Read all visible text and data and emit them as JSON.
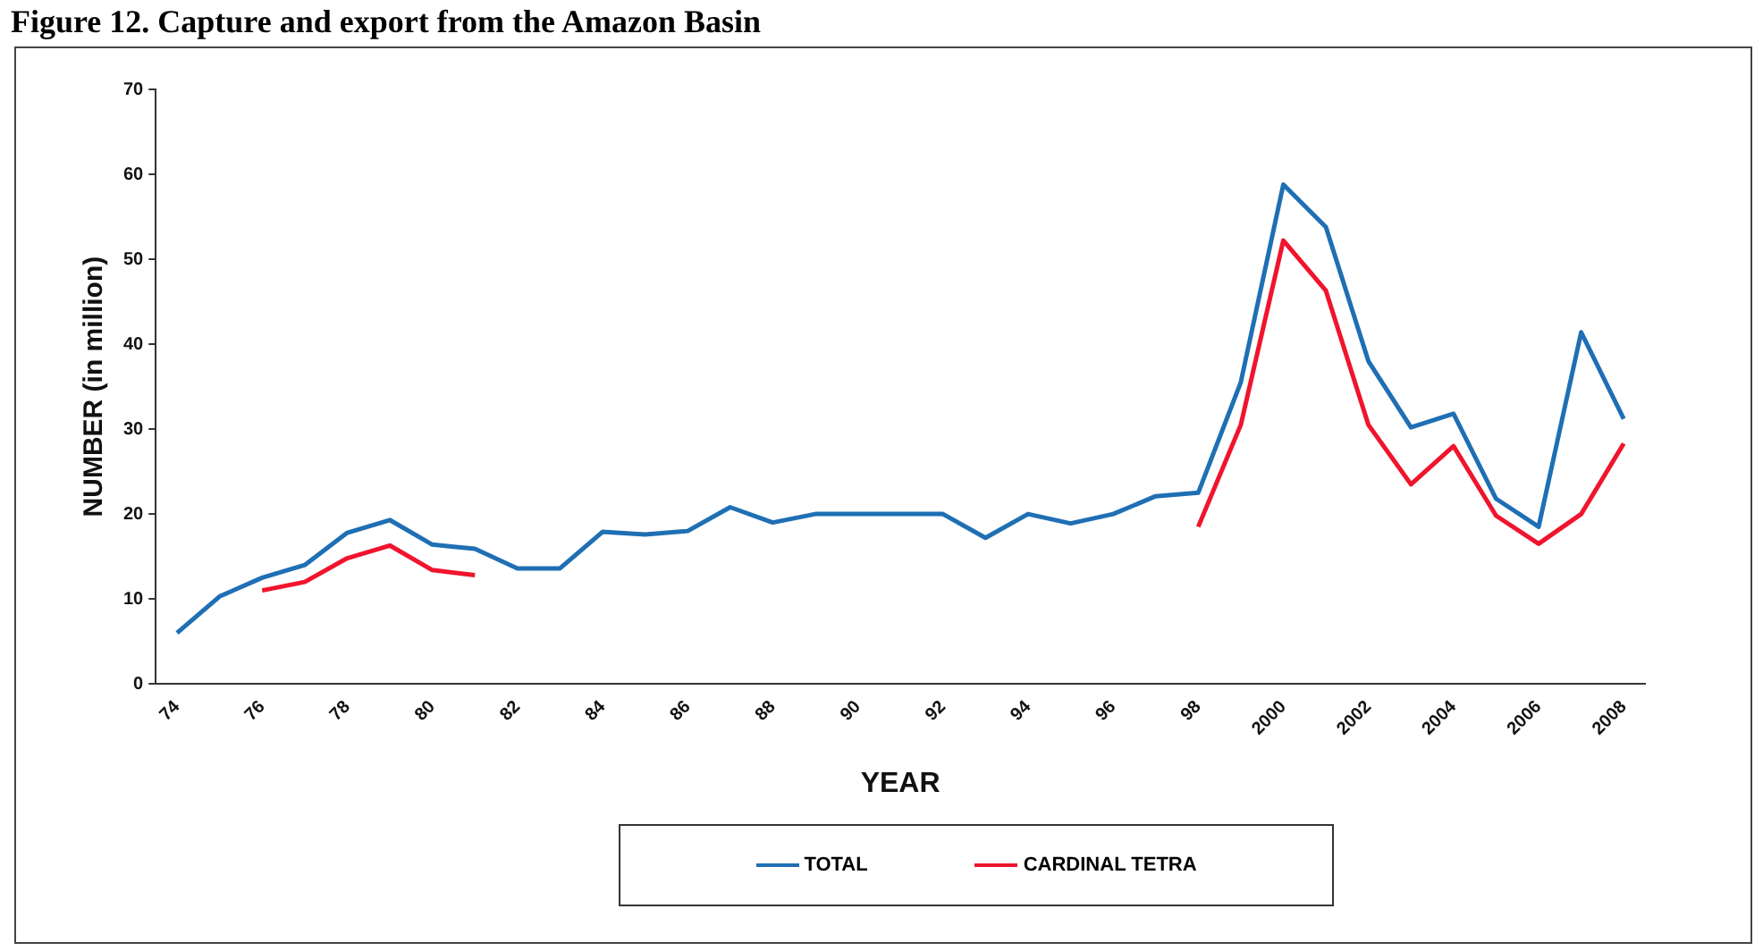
{
  "chart_data": {
    "type": "line",
    "title": "Figure 12. Capture and export from the Amazon Basin",
    "xlabel": "YEAR",
    "ylabel": "NUMBER (in million)",
    "categories": [
      "74",
      null,
      "76",
      null,
      "78",
      null,
      "80",
      null,
      "82",
      null,
      "84",
      null,
      "86",
      null,
      "88",
      null,
      "90",
      null,
      "92",
      null,
      "94",
      null,
      "96",
      null,
      "98",
      null,
      "2000",
      null,
      "2002",
      null,
      "2004",
      null,
      "2006",
      null,
      "2008"
    ],
    "series": [
      {
        "name": "TOTAL",
        "color": "#1f6fb4",
        "values": [
          6,
          10.3,
          12.5,
          14,
          17.8,
          19.3,
          16.4,
          15.9,
          13.6,
          13.6,
          17.9,
          17.6,
          18,
          20.8,
          19,
          20,
          20,
          20,
          20,
          17.2,
          20,
          18.9,
          20,
          22.1,
          22.5,
          35.5,
          58.8,
          53.8,
          38,
          30.2,
          31.8,
          21.8,
          18.5,
          41.4,
          31.2
        ]
      },
      {
        "name": "CARDINAL TETRA",
        "color": "#f0142d",
        "values": [
          null,
          null,
          11,
          12,
          14.8,
          16.3,
          13.4,
          12.8,
          null,
          null,
          null,
          null,
          null,
          null,
          null,
          null,
          null,
          null,
          null,
          null,
          null,
          null,
          null,
          null,
          18.5,
          30.5,
          52.2,
          46.3,
          30.5,
          23.5,
          28,
          19.8,
          16.5,
          20,
          28.3
        ]
      }
    ],
    "ylim": [
      0,
      70
    ],
    "yticks": [
      0,
      10,
      20,
      30,
      40,
      50,
      60,
      70
    ],
    "grid": false,
    "legend": "bottom",
    "marker": "none",
    "line_style": "solid"
  }
}
